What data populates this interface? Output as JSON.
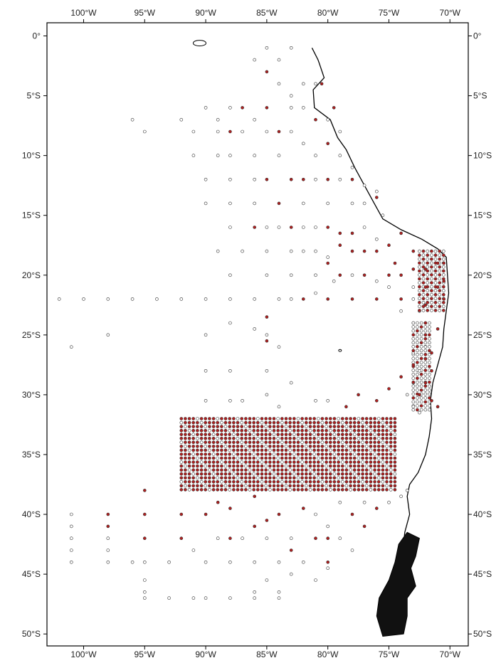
{
  "map": {
    "top_axis_labels": [
      "100°W",
      "95°W",
      "90°W",
      "85°W",
      "80°W",
      "75°W",
      "70°W"
    ],
    "bottom_axis_labels": [
      "100°W",
      "95°W",
      "90°W",
      "85°W",
      "80°W",
      "75°W",
      "70°W"
    ],
    "left_axis_labels": [
      "0°",
      "5°S",
      "10°S",
      "15°S",
      "20°S",
      "25°S",
      "30°S",
      "35°S",
      "40°S",
      "45°S",
      "50°S"
    ],
    "right_axis_labels": [
      "0°",
      "5°S",
      "10°S",
      "15°S",
      "20°S",
      "25°S",
      "30°S",
      "35°S",
      "40°S",
      "45°S",
      "50°S"
    ],
    "lon_ticks": [
      -100,
      -95,
      -90,
      -85,
      -80,
      -75,
      -70
    ],
    "lat_ticks": [
      0,
      -5,
      -10,
      -15,
      -20,
      -25,
      -30,
      -35,
      -40,
      -45,
      -50
    ],
    "lon_range": [
      -103,
      -68.5
    ],
    "lat_range": [
      1.1,
      -51
    ],
    "colors": {
      "sample_present": "#b01e1e",
      "sample_absent": "#ffffff",
      "marker_outline": "#333333",
      "coastline": "#000000",
      "frame": "#000000"
    },
    "legend": "none"
  },
  "chart_data": {
    "type": "scatter",
    "title": "",
    "xlabel": "",
    "ylabel": "",
    "xlim": [
      -103,
      -68.5
    ],
    "ylim": [
      -51,
      1.1
    ],
    "grid": false,
    "series": [
      {
        "marker": "filled-red-circle",
        "points": [
          [
            -85,
            -3
          ],
          [
            -87,
            -6
          ],
          [
            -85,
            -6
          ],
          [
            -80.5,
            -4
          ],
          [
            -79.5,
            -6
          ],
          [
            -88,
            -8
          ],
          [
            -84,
            -8
          ],
          [
            -80,
            -9
          ],
          [
            -81,
            -7
          ],
          [
            -85,
            -12
          ],
          [
            -83,
            -12
          ],
          [
            -82,
            -12
          ],
          [
            -80,
            -12
          ],
          [
            -78,
            -12
          ],
          [
            -76,
            -13.5
          ],
          [
            -84,
            -14
          ],
          [
            -86,
            -16
          ],
          [
            -83,
            -16
          ],
          [
            -80,
            -16
          ],
          [
            -79,
            -16.5
          ],
          [
            -78,
            -16.5
          ],
          [
            -79,
            -17.5
          ],
          [
            -78,
            -18
          ],
          [
            -77,
            -18
          ],
          [
            -76,
            -18
          ],
          [
            -75,
            -17.5
          ],
          [
            -74,
            -16.5
          ],
          [
            -73,
            -18
          ],
          [
            -74.5,
            -19
          ],
          [
            -80,
            -19
          ],
          [
            -79,
            -20
          ],
          [
            -77,
            -20
          ],
          [
            -75,
            -20
          ],
          [
            -74,
            -20
          ],
          [
            -73,
            -19.5
          ],
          [
            -72,
            -19.5
          ],
          [
            -71,
            -19
          ],
          [
            -70.5,
            -19
          ],
          [
            -70.5,
            -20.5
          ],
          [
            -71,
            -21
          ],
          [
            -72,
            -21
          ],
          [
            -70.5,
            -22
          ],
          [
            -72,
            -22.5
          ],
          [
            -78,
            -22
          ],
          [
            -76,
            -22
          ],
          [
            -74,
            -22
          ],
          [
            -80,
            -22
          ],
          [
            -82,
            -22
          ],
          [
            -85,
            -23.5
          ],
          [
            -85,
            -25.5
          ],
          [
            -72,
            -24
          ],
          [
            -71,
            -24.5
          ],
          [
            -72,
            -25
          ],
          [
            -71.5,
            -26.5
          ],
          [
            -72,
            -27
          ],
          [
            -71.5,
            -28
          ],
          [
            -72,
            -29
          ],
          [
            -73,
            -27.5
          ],
          [
            -74,
            -28.5
          ],
          [
            -75,
            -29.5
          ],
          [
            -76,
            -30.5
          ],
          [
            -77.5,
            -30
          ],
          [
            -78.5,
            -31
          ],
          [
            -72.5,
            -30
          ],
          [
            -71.5,
            -30.5
          ],
          [
            -71,
            -31
          ],
          [
            -95,
            -38
          ],
          [
            -95,
            -40
          ],
          [
            -95,
            -42
          ],
          [
            -98,
            -40
          ],
          [
            -98,
            -41
          ],
          [
            -92,
            -40
          ],
          [
            -92,
            -42
          ],
          [
            -88,
            -42
          ],
          [
            -86,
            -41
          ],
          [
            -84,
            -40
          ],
          [
            -83,
            -43
          ],
          [
            -81,
            -42
          ],
          [
            -80,
            -42
          ],
          [
            -80,
            -44
          ],
          [
            -78,
            -40
          ],
          [
            -77,
            -41
          ],
          [
            -76,
            -39.5
          ],
          [
            -82,
            -39.5
          ],
          [
            -85,
            -40.5
          ],
          [
            -90,
            -40
          ],
          [
            -89,
            -39
          ],
          [
            -88,
            -39.5
          ],
          [
            -86,
            -38.5
          ]
        ]
      },
      {
        "marker": "open-circle",
        "points": [
          [
            -85,
            -1
          ],
          [
            -83,
            -1
          ],
          [
            -84,
            -2
          ],
          [
            -86,
            -2
          ],
          [
            -84,
            -4
          ],
          [
            -83,
            -5
          ],
          [
            -82,
            -4
          ],
          [
            -81,
            -4
          ],
          [
            -88,
            -6
          ],
          [
            -90,
            -6
          ],
          [
            -92,
            -7
          ],
          [
            -89,
            -7
          ],
          [
            -86,
            -7
          ],
          [
            -83,
            -6
          ],
          [
            -82,
            -6
          ],
          [
            -80,
            -7
          ],
          [
            -79,
            -8
          ],
          [
            -96,
            -7
          ],
          [
            -95,
            -8
          ],
          [
            -91,
            -8
          ],
          [
            -89,
            -8
          ],
          [
            -87,
            -8
          ],
          [
            -85,
            -8
          ],
          [
            -83,
            -8
          ],
          [
            -82,
            -9
          ],
          [
            -81,
            -10
          ],
          [
            -79,
            -10
          ],
          [
            -78,
            -11
          ],
          [
            -91,
            -10
          ],
          [
            -89,
            -10
          ],
          [
            -88,
            -10
          ],
          [
            -86,
            -10
          ],
          [
            -84,
            -10
          ],
          [
            -90,
            -12
          ],
          [
            -88,
            -12
          ],
          [
            -86,
            -12
          ],
          [
            -81,
            -12
          ],
          [
            -79,
            -12
          ],
          [
            -77,
            -12.5
          ],
          [
            -76,
            -13
          ],
          [
            -90,
            -14
          ],
          [
            -88,
            -14
          ],
          [
            -86,
            -14
          ],
          [
            -82,
            -14
          ],
          [
            -80,
            -14
          ],
          [
            -78,
            -14
          ],
          [
            -77,
            -14
          ],
          [
            -75.5,
            -15
          ],
          [
            -88,
            -16
          ],
          [
            -85,
            -16
          ],
          [
            -84,
            -16
          ],
          [
            -82,
            -16
          ],
          [
            -81,
            -16
          ],
          [
            -77,
            -16
          ],
          [
            -76,
            -17
          ],
          [
            -89,
            -18
          ],
          [
            -87,
            -18
          ],
          [
            -85,
            -18
          ],
          [
            -83,
            -18
          ],
          [
            -82,
            -18
          ],
          [
            -81,
            -18
          ],
          [
            -80,
            -18.5
          ],
          [
            -88,
            -20
          ],
          [
            -85,
            -20
          ],
          [
            -83,
            -20
          ],
          [
            -81,
            -20
          ],
          [
            -79.5,
            -20.5
          ],
          [
            -78,
            -20
          ],
          [
            -76,
            -20.5
          ],
          [
            -75,
            -21
          ],
          [
            -73,
            -21
          ],
          [
            -73,
            -22
          ],
          [
            -74,
            -23
          ],
          [
            -73,
            -24
          ],
          [
            -72.5,
            -23
          ],
          [
            -72,
            -26
          ],
          [
            -73,
            -26.5
          ],
          [
            -72.5,
            -28
          ],
          [
            -73,
            -29
          ],
          [
            -73.5,
            -30
          ],
          [
            -73,
            -31
          ],
          [
            -72.5,
            -31.5
          ],
          [
            -102,
            -22
          ],
          [
            -100,
            -22
          ],
          [
            -98,
            -22
          ],
          [
            -96,
            -22
          ],
          [
            -94,
            -22
          ],
          [
            -92,
            -22
          ],
          [
            -90,
            -22
          ],
          [
            -88,
            -22
          ],
          [
            -86,
            -22
          ],
          [
            -84,
            -22
          ],
          [
            -83,
            -22
          ],
          [
            -81,
            -21.5
          ],
          [
            -98,
            -25
          ],
          [
            -101,
            -26
          ],
          [
            -90,
            -25
          ],
          [
            -88,
            -24
          ],
          [
            -86,
            -24.5
          ],
          [
            -85,
            -25
          ],
          [
            -84,
            -26
          ],
          [
            -90,
            -28
          ],
          [
            -88,
            -28
          ],
          [
            -85,
            -28
          ],
          [
            -83,
            -29
          ],
          [
            -81,
            -30.5
          ],
          [
            -90,
            -30.5
          ],
          [
            -88,
            -30.5
          ],
          [
            -87,
            -30.5
          ],
          [
            -85,
            -30
          ],
          [
            -84,
            -31
          ],
          [
            -80,
            -30.5
          ],
          [
            -101,
            -40
          ],
          [
            -101,
            -41
          ],
          [
            -101,
            -42
          ],
          [
            -101,
            -43
          ],
          [
            -101,
            -44
          ],
          [
            -98,
            -42
          ],
          [
            -98,
            -43
          ],
          [
            -98,
            -44
          ],
          [
            -96,
            -44
          ],
          [
            -95,
            -44
          ],
          [
            -95,
            -45.5
          ],
          [
            -95,
            -46.5
          ],
          [
            -95,
            -47
          ],
          [
            -93,
            -47
          ],
          [
            -91,
            -47
          ],
          [
            -90,
            -47
          ],
          [
            -88,
            -47
          ],
          [
            -86,
            -47
          ],
          [
            -84,
            -47
          ],
          [
            -90,
            -44
          ],
          [
            -88,
            -44
          ],
          [
            -86,
            -44
          ],
          [
            -84,
            -44
          ],
          [
            -82,
            -44
          ],
          [
            -80,
            -44.5
          ],
          [
            -93,
            -44
          ],
          [
            -91,
            -43
          ],
          [
            -89,
            -42
          ],
          [
            -87,
            -42
          ],
          [
            -85,
            -42
          ],
          [
            -83,
            -42
          ],
          [
            -79,
            -42
          ],
          [
            -78,
            -43
          ],
          [
            -85,
            -45.5
          ],
          [
            -83,
            -45
          ],
          [
            -81,
            -45.5
          ],
          [
            -86,
            -46.5
          ],
          [
            -84,
            -46.5
          ],
          [
            -75,
            -39
          ],
          [
            -74,
            -38.5
          ],
          [
            -73.5,
            -38
          ],
          [
            -77,
            -39
          ],
          [
            -79,
            -39
          ],
          [
            -81,
            -40
          ],
          [
            -80,
            -41
          ]
        ]
      }
    ],
    "dense_regions": [
      {
        "lon_range": [
          -92,
          -74.5
        ],
        "lat_range": [
          -32,
          -38
        ],
        "mix": "mostly filled red, some open"
      },
      {
        "lon_range": [
          -72.5,
          -70.5
        ],
        "lat_range": [
          -18,
          -23
        ],
        "mix": "mixed filled and open"
      },
      {
        "lon_range": [
          -73,
          -71.5
        ],
        "lat_range": [
          -24,
          -31.5
        ],
        "mix": "mostly open, some filled"
      }
    ],
    "coastline": [
      [
        -81.3,
        -1
      ],
      [
        -80.8,
        -2
      ],
      [
        -80.7,
        -2.3
      ],
      [
        -80.3,
        -3.5
      ],
      [
        -81.2,
        -4.5
      ],
      [
        -81.1,
        -6
      ],
      [
        -79.8,
        -7
      ],
      [
        -79.2,
        -8.5
      ],
      [
        -78.5,
        -9.5
      ],
      [
        -77.8,
        -11
      ],
      [
        -77,
        -12.5
      ],
      [
        -76.2,
        -14
      ],
      [
        -75.5,
        -15.3
      ],
      [
        -74,
        -16.2
      ],
      [
        -72.3,
        -17
      ],
      [
        -71,
        -17.8
      ],
      [
        -70.3,
        -18.5
      ],
      [
        -70.2,
        -20
      ],
      [
        -70.1,
        -21.5
      ],
      [
        -70.3,
        -23
      ],
      [
        -70.5,
        -24.5
      ],
      [
        -70.6,
        -26
      ],
      [
        -71,
        -27.5
      ],
      [
        -71.4,
        -29
      ],
      [
        -71.6,
        -30.5
      ],
      [
        -71.5,
        -32
      ],
      [
        -71.7,
        -33.5
      ],
      [
        -72,
        -35
      ],
      [
        -72.6,
        -36.5
      ],
      [
        -73.3,
        -37.5
      ],
      [
        -73.5,
        -38.5
      ],
      [
        -73.3,
        -40
      ],
      [
        -73.7,
        -41.5
      ],
      [
        -73.8,
        -42.5
      ],
      [
        -73.5,
        -44
      ],
      [
        -74.3,
        -45.5
      ],
      [
        -74.8,
        -47
      ],
      [
        -75.2,
        -48.5
      ],
      [
        -75,
        -50
      ]
    ],
    "islands": [
      {
        "name": "",
        "center": [
          -90.5,
          -0.6
        ]
      },
      {
        "name": "",
        "center": [
          -79,
          -26.3
        ]
      }
    ]
  }
}
